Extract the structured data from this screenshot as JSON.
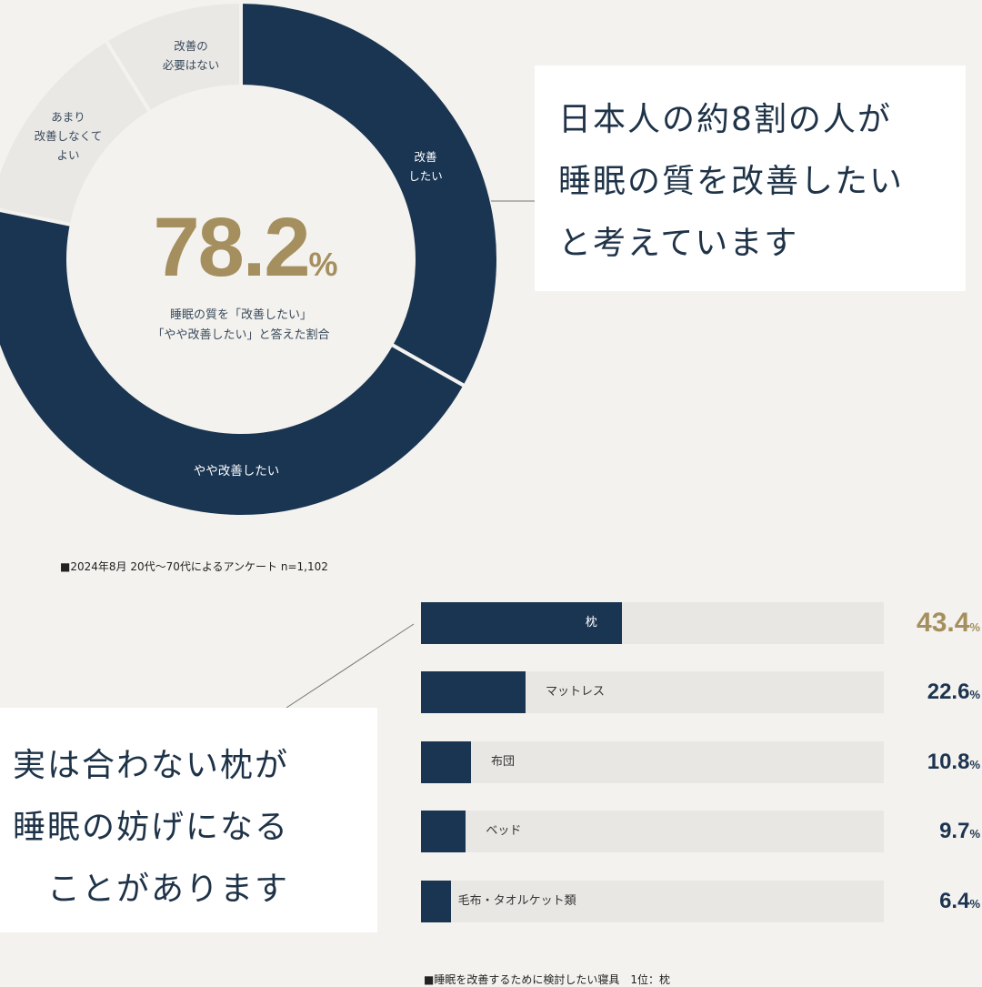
{
  "colors": {
    "navy": "#1a3552",
    "light": "#e9e8e5",
    "gold": "#a58f5e",
    "background": "#f3f2ee"
  },
  "chart_data": [
    {
      "type": "pie",
      "variant": "donut",
      "categories": [
        "改善したい",
        "やや改善したい",
        "あまり改善しなくてよい",
        "改善の必要はない"
      ],
      "values": [
        33.2,
        45.0,
        13.0,
        8.8
      ],
      "center_value": "78.2",
      "center_unit": "%",
      "center_caption": [
        "睡眠の質を「改善したい」",
        "「やや改善したい」と答えた割合"
      ],
      "segment_labels": [
        [
          "改善",
          "したい"
        ],
        [
          "やや改善したい"
        ],
        [
          "あまり",
          "改善しなくて",
          "よい"
        ],
        [
          "改善の",
          "必要はない"
        ]
      ],
      "note": "■2024年8月 20代～70代によるアンケート n=1,102"
    },
    {
      "type": "bar",
      "orientation": "horizontal",
      "categories": [
        "枕",
        "マットレス",
        "布団",
        "ベッド",
        "毛布・タオルケット類"
      ],
      "values": [
        43.4,
        22.6,
        10.8,
        9.7,
        6.4
      ],
      "value_labels": [
        "43.4",
        "22.6",
        "10.8",
        "9.7",
        "6.4"
      ],
      "unit": "%",
      "xlim": [
        0,
        100
      ],
      "note": "■睡眠を改善するために検討したい寝具　1位：枕"
    }
  ],
  "callouts": {
    "top": [
      "日本人の約8割の人が",
      "睡眠の質を改善したい",
      "と考えています"
    ],
    "bottom": [
      "実は合わない枕が",
      "睡眠の妨げになる",
      "　ことがあります"
    ]
  }
}
